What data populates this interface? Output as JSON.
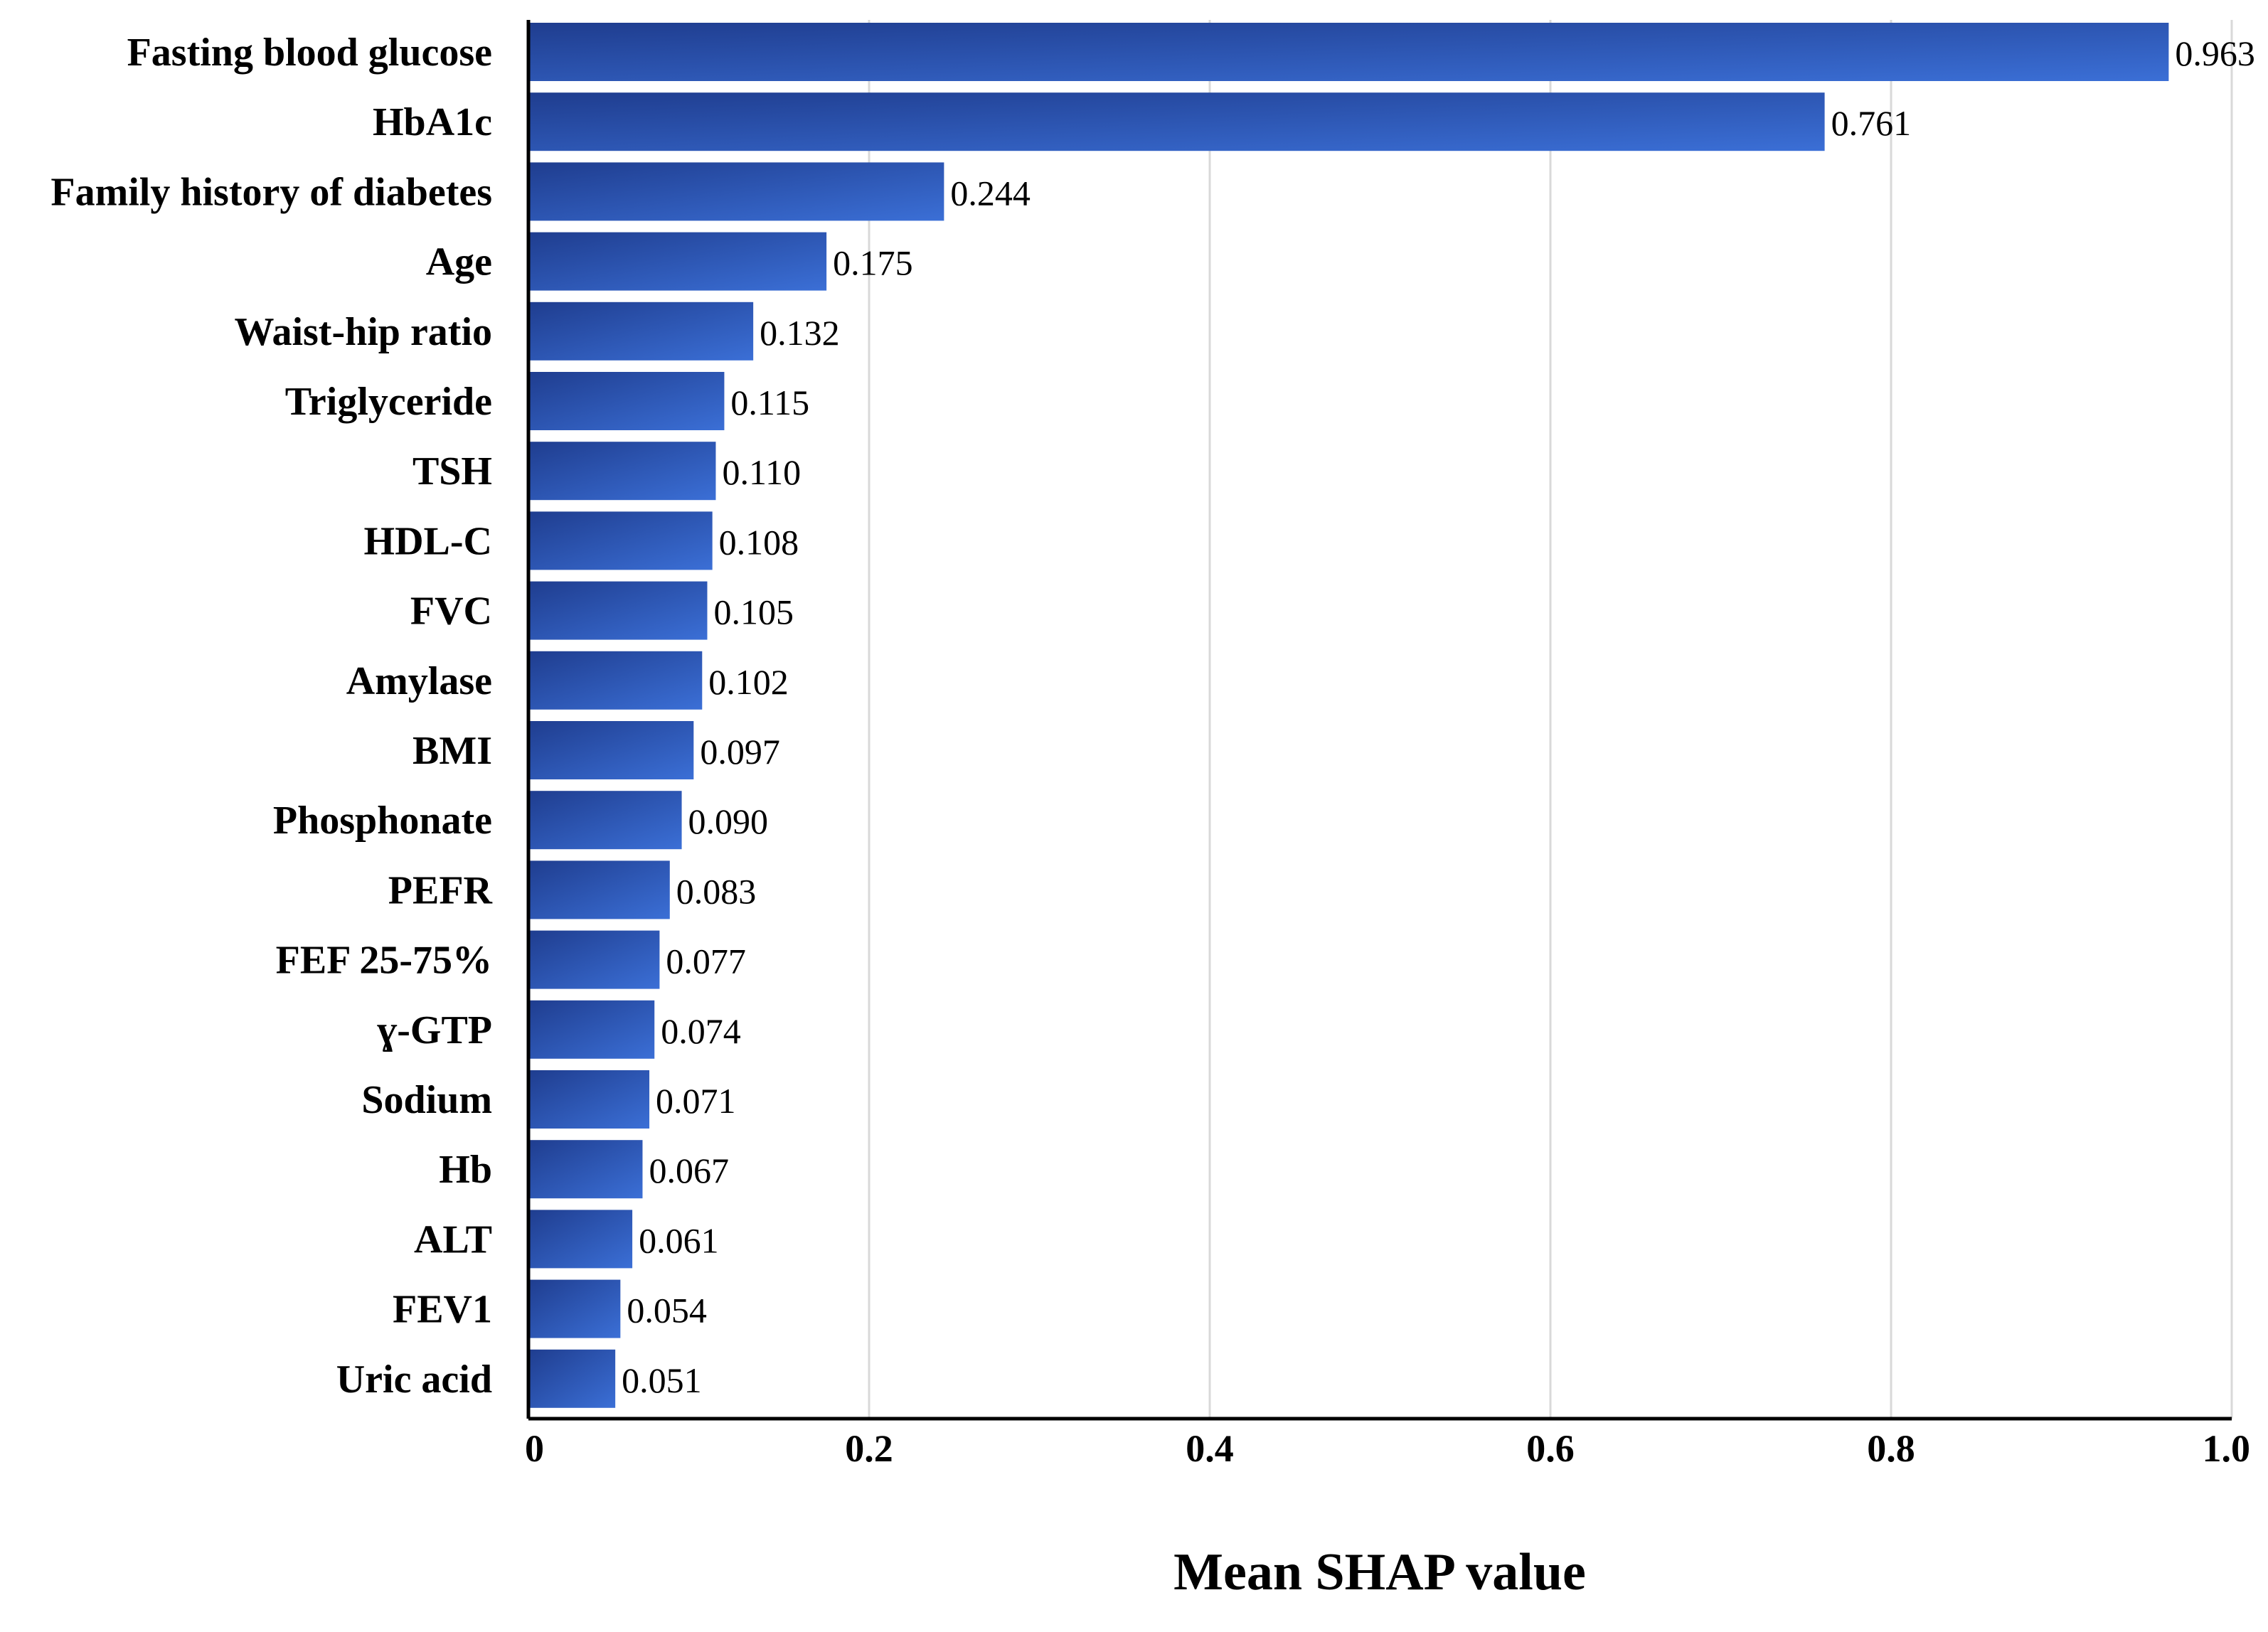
{
  "chart_data": {
    "type": "bar",
    "orientation": "horizontal",
    "categories": [
      "Fasting blood glucose",
      "HbA1c",
      "Family history of diabetes",
      "Age",
      "Waist-hip ratio",
      "Triglyceride",
      "TSH",
      "HDL-C",
      "FVC",
      "Amylase",
      "BMI",
      "Phosphonate",
      "PEFR",
      "FEF 25-75%",
      "ɣ-GTP",
      "Sodium",
      "Hb",
      "ALT",
      "FEV1",
      "Uric acid"
    ],
    "values": [
      0.963,
      0.761,
      0.244,
      0.175,
      0.132,
      0.115,
      0.11,
      0.108,
      0.105,
      0.102,
      0.097,
      0.09,
      0.083,
      0.077,
      0.074,
      0.071,
      0.067,
      0.061,
      0.054,
      0.051
    ],
    "value_labels": [
      "0.963",
      "0.761",
      "0.244",
      "0.175",
      "0.132",
      "0.115",
      "0.110",
      "0.108",
      "0.105",
      "0.102",
      "0.097",
      "0.090",
      "0.083",
      "0.077",
      "0.074",
      "0.071",
      "0.067",
      "0.061",
      "0.054",
      "0.051"
    ],
    "title": "",
    "xlabel": "Mean SHAP value",
    "ylabel": "",
    "xlim": [
      0,
      1.0
    ],
    "xticks": [
      0,
      0.2,
      0.4,
      0.6,
      0.8,
      1.0
    ],
    "xtick_labels": [
      "0",
      "0.2",
      "0.4",
      "0.6",
      "0.8",
      "1.0"
    ],
    "grid": "vertical",
    "colors": {
      "bar_dark": "#1f3d8f",
      "bar_light": "#3b6fd6",
      "grid": "#d9d9d9",
      "axis": "#000000"
    }
  }
}
